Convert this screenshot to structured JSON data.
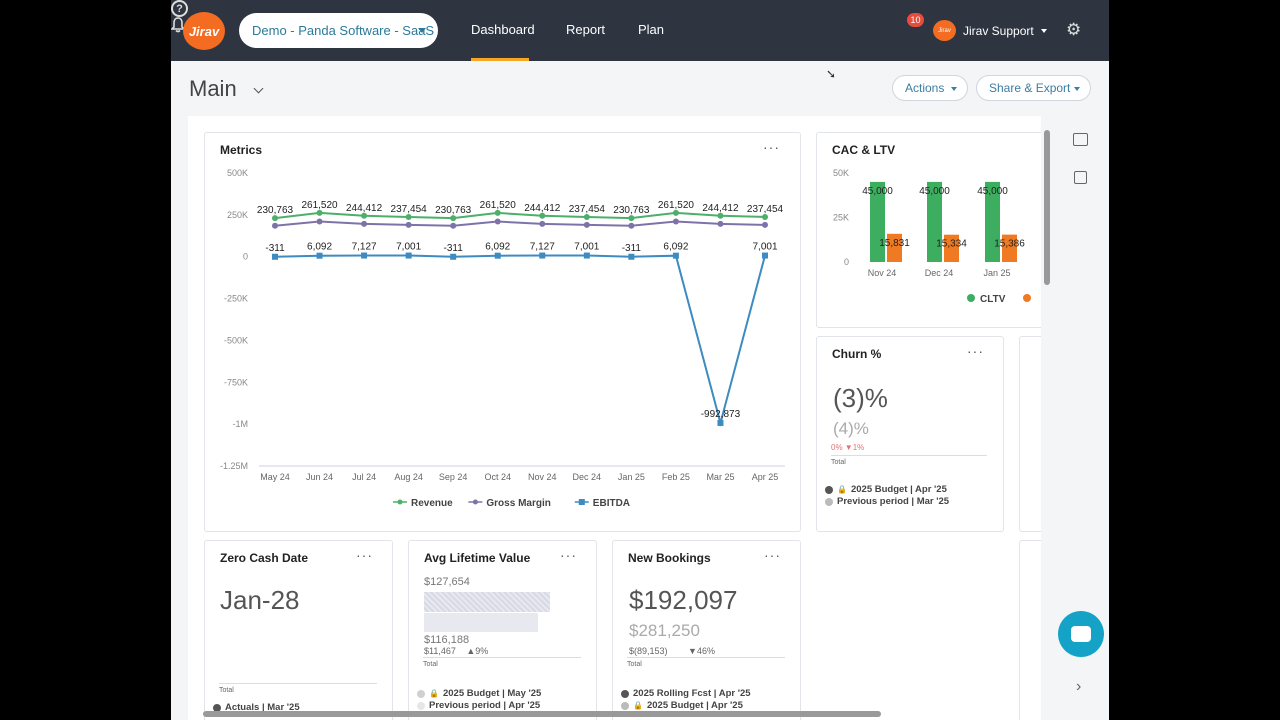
{
  "nav": {
    "logo_text": "Jirav",
    "company": "Demo - Panda Software - SaaS",
    "tabs": [
      "Dashboard",
      "Report",
      "Plan"
    ],
    "notifications": "10",
    "user": "Jirav Support",
    "avatar_text": "Jirav"
  },
  "page": {
    "title": "Main",
    "actions_label": "Actions",
    "share_label": "Share & Export"
  },
  "metrics": {
    "title": "Metrics",
    "menu": "···",
    "chart_data": {
      "type": "line",
      "categories": [
        "May 24",
        "Jun 24",
        "Jul 24",
        "Aug 24",
        "Sep 24",
        "Oct 24",
        "Nov 24",
        "Dec 24",
        "Jan 25",
        "Feb 25",
        "Mar 25",
        "Apr 25"
      ],
      "yticks": [
        "500K",
        "250K",
        "0",
        "-250K",
        "-500K",
        "-750K",
        "-1M",
        "-1.25M"
      ],
      "ylim": [
        -1250000,
        500000
      ],
      "series": [
        {
          "name": "Revenue",
          "color": "#4caf6a",
          "values": [
            230763,
            261520,
            244412,
            237454,
            230763,
            261520,
            244412,
            237454,
            230763,
            261520,
            244412,
            237454
          ],
          "labels": [
            "230,763",
            "261,520",
            "244,412",
            "237,454",
            "230,763",
            "261,520",
            "244,412",
            "237,454",
            "230,763",
            "261,520",
            "244,412",
            "237,454"
          ]
        },
        {
          "name": "Gross Margin",
          "color": "#7e73a8",
          "values": [
            185000,
            210000,
            196000,
            190000,
            185000,
            210000,
            196000,
            190000,
            185000,
            210000,
            196000,
            190000
          ]
        },
        {
          "name": "EBITDA",
          "color": "#3d8bc0",
          "values": [
            -311,
            6092,
            7127,
            7001,
            -311,
            6092,
            7127,
            7001,
            -311,
            6092,
            -992873,
            7001
          ],
          "labels": [
            "-311",
            "6,092",
            "7,127",
            "7,001",
            "-311",
            "6,092",
            "7,127",
            "7,001",
            "-311",
            "6,092",
            "-992,873",
            "7,001"
          ]
        }
      ]
    }
  },
  "cac": {
    "title": "CAC & LTV",
    "chart_data": {
      "type": "bar",
      "categories": [
        "Nov 24",
        "Dec 24",
        "Jan 25"
      ],
      "yticks": [
        "50K",
        "25K",
        "0"
      ],
      "ylim": [
        0,
        50000
      ],
      "series": [
        {
          "name": "CLTV",
          "color": "#3dad5f",
          "values": [
            45000,
            45000,
            45000
          ],
          "labels": [
            "45,000",
            "45,000",
            "45,000"
          ]
        },
        {
          "name": "",
          "color": "#f07a22",
          "values": [
            15831,
            15334,
            15386
          ],
          "labels": [
            "15,831",
            "15,334",
            "15,386"
          ]
        }
      ]
    },
    "legend_cltv": "CLTV"
  },
  "churn": {
    "title": "Churn %",
    "menu": "···",
    "value": "(3)%",
    "compare": "(4)%",
    "delta_a": "0%",
    "delta_b": "▼1%",
    "total": "Total",
    "legend1": "2025 Budget | Apr '25",
    "legend2": "Previous period | Mar '25"
  },
  "zero_cash": {
    "title": "Zero Cash Date",
    "menu": "···",
    "value": "Jan-28",
    "total": "Total",
    "legend1": "Actuals | Mar '25"
  },
  "altv": {
    "title": "Avg Lifetime Value",
    "menu": "···",
    "bar1_label": "$127,654",
    "bar2_label": "$116,188",
    "diff": "$11,467",
    "pct": "▲9%",
    "total": "Total",
    "legend1": "2025 Budget | May '25",
    "legend2": "Previous period | Apr '25"
  },
  "bookings": {
    "title": "New Bookings",
    "menu": "···",
    "value": "$192,097",
    "compare": "$281,250",
    "diff": "$(89,153)",
    "pct": "▼46%",
    "total": "Total",
    "legend1": "2025 Rolling Fcst | Apr '25",
    "legend2": "2025 Budget | Apr '25"
  }
}
